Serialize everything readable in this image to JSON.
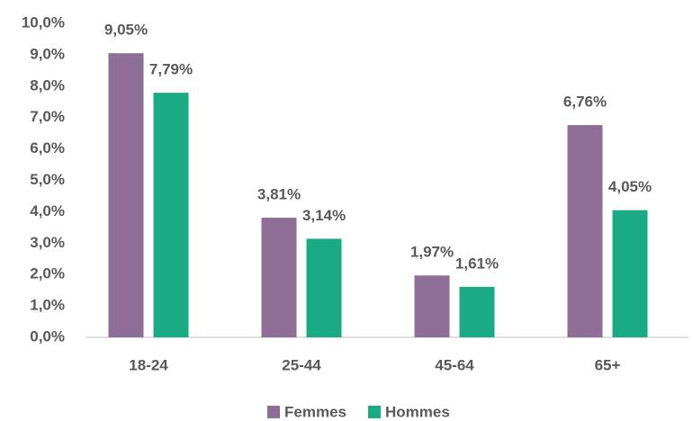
{
  "chart_data": {
    "type": "bar",
    "categories": [
      "18-24",
      "25-44",
      "45-64",
      "65+"
    ],
    "series": [
      {
        "name": "Femmes",
        "color": "#8e6d96",
        "values": [
          9.05,
          3.81,
          1.97,
          6.76
        ],
        "value_labels": [
          "9,05%",
          "3,81%",
          "1,97%",
          "6,76%"
        ]
      },
      {
        "name": "Hommes",
        "color": "#1aab85",
        "values": [
          7.79,
          3.14,
          1.61,
          4.05
        ],
        "value_labels": [
          "7,79%",
          "3,14%",
          "1,61%",
          "4,05%"
        ]
      }
    ],
    "ylim": [
      0,
      10
    ],
    "yticks": [
      {
        "value": 0,
        "label": "0,0%"
      },
      {
        "value": 1,
        "label": "1,0%"
      },
      {
        "value": 2,
        "label": "2,0%"
      },
      {
        "value": 3,
        "label": "3,0%"
      },
      {
        "value": 4,
        "label": "4,0%"
      },
      {
        "value": 5,
        "label": "5,0%"
      },
      {
        "value": 6,
        "label": "6,0%"
      },
      {
        "value": 7,
        "label": "7,0%"
      },
      {
        "value": 8,
        "label": "8,0%"
      },
      {
        "value": 9,
        "label": "9,0%"
      },
      {
        "value": 10,
        "label": "10,0%"
      }
    ],
    "grid": false,
    "legend": "bottom"
  }
}
